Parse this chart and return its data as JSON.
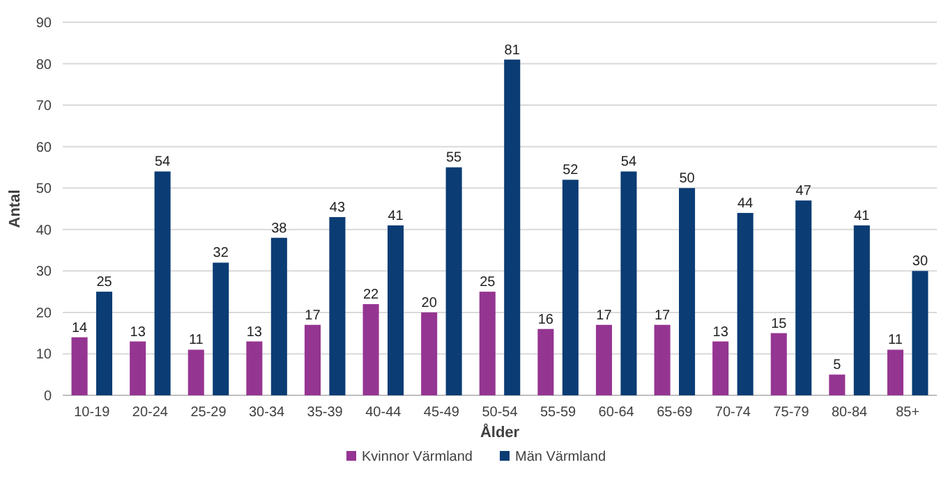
{
  "chart_data": {
    "type": "bar",
    "xlabel": "Ålder",
    "ylabel": "Antal",
    "categories": [
      "10-19",
      "20-24",
      "25-29",
      "30-34",
      "35-39",
      "40-44",
      "45-49",
      "50-54",
      "55-59",
      "60-64",
      "65-69",
      "70-74",
      "75-79",
      "80-84",
      "85+"
    ],
    "series": [
      {
        "name": "Kvinnor Värmland",
        "color": "#953592",
        "values": [
          14,
          13,
          11,
          13,
          17,
          22,
          20,
          25,
          16,
          17,
          17,
          13,
          15,
          5,
          11
        ]
      },
      {
        "name": "Män Värmland",
        "color": "#0b3c74",
        "values": [
          25,
          54,
          32,
          38,
          43,
          41,
          55,
          81,
          52,
          54,
          50,
          44,
          47,
          41,
          30
        ]
      }
    ],
    "ylim": [
      0,
      90
    ],
    "yticks": [
      0,
      10,
      20,
      30,
      40,
      50,
      60,
      70,
      80,
      90
    ],
    "grid": "y",
    "legend": "bottom",
    "data_labels": true
  }
}
